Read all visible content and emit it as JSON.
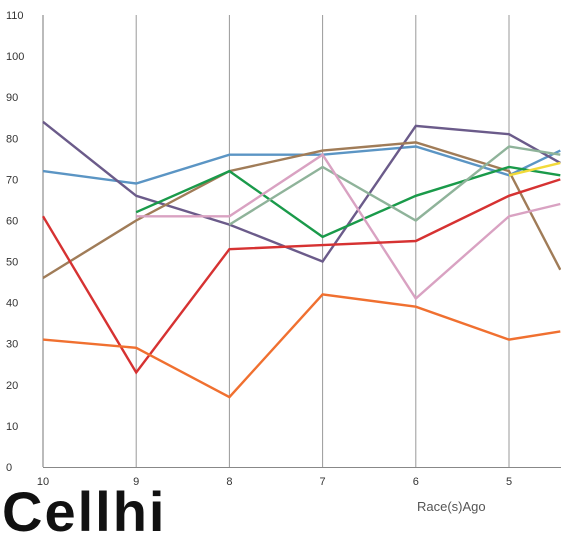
{
  "chart_data": {
    "type": "line",
    "title": "",
    "xlabel": "Race(s)Ago",
    "ylabel": "",
    "x": [
      10,
      9,
      8,
      7,
      6,
      5
    ],
    "x_ticks": [
      "10",
      "9",
      "8",
      "7",
      "6",
      "5"
    ],
    "y_ticks": [
      "0",
      "10",
      "20",
      "30",
      "40",
      "50",
      "60",
      "70",
      "80",
      "90",
      "100",
      "110"
    ],
    "ylim": [
      0,
      110
    ],
    "grid": "vertical",
    "series": [
      {
        "color": "#5b95c4",
        "points": [
          [
            10,
            72
          ],
          [
            9,
            69
          ],
          [
            8,
            76
          ],
          [
            7,
            76
          ],
          [
            6,
            78
          ],
          [
            5,
            71
          ],
          [
            4.45,
            77
          ]
        ]
      },
      {
        "color": "#6b5b8a",
        "points": [
          [
            10,
            84
          ],
          [
            9,
            66
          ],
          [
            8,
            59
          ],
          [
            7,
            50
          ],
          [
            6,
            83
          ],
          [
            5,
            81
          ],
          [
            4.45,
            74
          ]
        ]
      },
      {
        "color": "#a07c58",
        "points": [
          [
            10,
            46
          ],
          [
            9,
            60
          ],
          [
            8,
            72
          ],
          [
            7,
            77
          ],
          [
            6,
            79
          ],
          [
            5,
            72
          ],
          [
            4.45,
            48
          ]
        ]
      },
      {
        "color": "#1a9a4a",
        "points": [
          [
            9,
            62
          ],
          [
            8,
            72
          ],
          [
            7,
            56
          ],
          [
            6,
            66
          ],
          [
            5,
            73
          ],
          [
            4.45,
            71
          ]
        ]
      },
      {
        "color": "#8fb39a",
        "points": [
          [
            8,
            59
          ],
          [
            7,
            73
          ],
          [
            6,
            60
          ],
          [
            5,
            78
          ],
          [
            4.45,
            76
          ]
        ]
      },
      {
        "color": "#d9a2c2",
        "points": [
          [
            9,
            61
          ],
          [
            8,
            61
          ],
          [
            7,
            76
          ],
          [
            6,
            41
          ],
          [
            5,
            61
          ],
          [
            4.45,
            64
          ]
        ]
      },
      {
        "color": "#d63232",
        "points": [
          [
            10,
            61
          ],
          [
            9,
            23
          ],
          [
            8,
            53
          ],
          [
            7,
            54
          ],
          [
            6,
            55
          ],
          [
            5,
            66
          ],
          [
            4.45,
            70
          ]
        ]
      },
      {
        "color": "#f07030",
        "points": [
          [
            10,
            31
          ],
          [
            9,
            29
          ],
          [
            8,
            17
          ],
          [
            7,
            42
          ],
          [
            6,
            39
          ],
          [
            5,
            31
          ],
          [
            4.45,
            33
          ]
        ]
      },
      {
        "color": "#f2da3a",
        "points": [
          [
            5,
            71
          ],
          [
            4.45,
            74
          ]
        ]
      }
    ]
  },
  "overlay_text": "Cellhi"
}
